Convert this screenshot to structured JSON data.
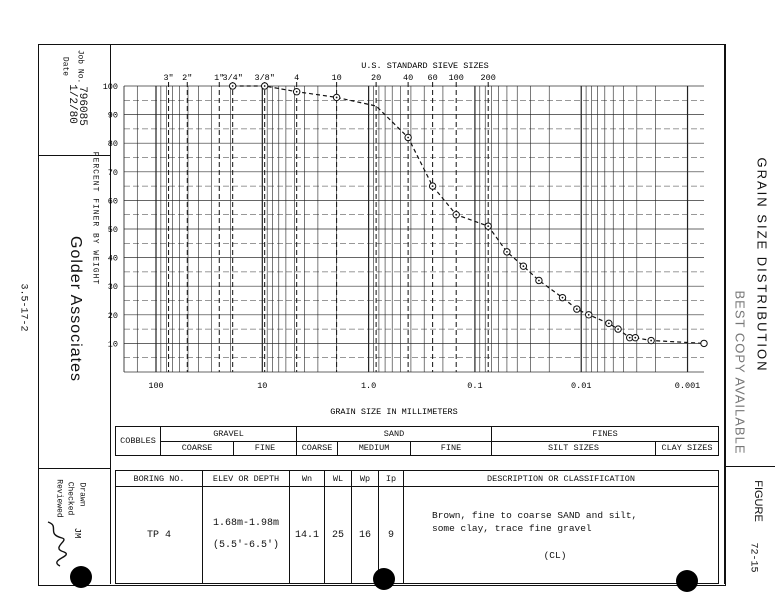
{
  "header": {
    "date_label": "Date",
    "date_value": "1/2/80",
    "job_label": "Job No.",
    "job_value": "796085",
    "company": "Golder Associates",
    "doc_id": "3.5-17-2",
    "drawn_label": "Drawn",
    "drawn_value": "JM",
    "checked_label": "Checked",
    "reviewed_label": "Reviewed",
    "sheet_title": "GRAIN SIZE DISTRIBUTION",
    "stamp": "BEST COPY AVAILABLE",
    "figure_label": "FIGURE",
    "figure_value": "72-15"
  },
  "chart_data": {
    "type": "line",
    "title": "U.S. STANDARD SIEVE SIZES",
    "xlabel": "GRAIN SIZE IN MILLIMETERS",
    "ylabel": "PERCENT FINER BY WEIGHT",
    "x_scale": "log",
    "x_reversed": true,
    "xlim": [
      200,
      0.0007
    ],
    "ylim": [
      0,
      100
    ],
    "x_ticks": [
      100,
      10,
      1.0,
      0.1,
      0.01,
      0.001
    ],
    "x_tick_labels": [
      "100",
      "10",
      "1.0",
      "0.1",
      "0.01",
      "0.001"
    ],
    "y_ticks": [
      10,
      20,
      30,
      40,
      50,
      60,
      70,
      80,
      90,
      100
    ],
    "sieve_labels": [
      {
        "label": "3\"",
        "size": 76.2
      },
      {
        "label": "2\"",
        "size": 50.8
      },
      {
        "label": "1\"",
        "size": 25.4
      },
      {
        "label": "3/4\"",
        "size": 19.0
      },
      {
        "label": "3/8\"",
        "size": 9.5
      },
      {
        "label": "4",
        "size": 4.75
      },
      {
        "label": "10",
        "size": 2.0
      },
      {
        "label": "20",
        "size": 0.85
      },
      {
        "label": "40",
        "size": 0.425
      },
      {
        "label": "60",
        "size": 0.25
      },
      {
        "label": "100",
        "size": 0.15
      },
      {
        "label": "200",
        "size": 0.075
      }
    ],
    "series": [
      {
        "x": [
          19.0,
          9.5,
          4.75,
          2.0,
          0.85,
          0.425,
          0.25,
          0.15,
          0.075,
          0.05,
          0.035,
          0.025,
          0.015,
          0.011,
          0.0085,
          0.0055,
          0.0045,
          0.0035,
          0.0031,
          0.0022,
          0.0007
        ],
        "y": [
          100,
          100,
          98,
          96,
          93,
          82,
          65,
          55,
          51,
          42,
          37,
          32,
          26,
          22,
          20,
          17,
          15,
          12,
          12,
          11,
          10
        ]
      }
    ],
    "grid": true
  },
  "classification": {
    "cobbles": "COBBLES",
    "gravel": "GRAVEL",
    "gravel_coarse": "COARSE",
    "gravel_fine": "FINE",
    "sand": "SAND",
    "sand_coarse": "COARSE",
    "sand_medium": "MEDIUM",
    "sand_fine": "FINE",
    "fines": "FINES",
    "silt": "SILT SIZES",
    "clay": "CLAY SIZES"
  },
  "boring": {
    "headers": {
      "boring_no": "BORING NO.",
      "elev": "ELEV OR DEPTH",
      "wn": "Wn",
      "wl": "WL",
      "wp": "Wp",
      "ip": "Ip",
      "desc": "DESCRIPTION OR CLASSIFICATION"
    },
    "row": {
      "boring_no": "TP 4",
      "elev_1": "1.68m-1.98m",
      "elev_2": "(5.5'-6.5')",
      "wn": "14.1",
      "wl": "25",
      "wp": "16",
      "ip": "9",
      "desc_1": "Brown, fine to coarse SAND and silt,",
      "desc_2": "some clay, trace fine gravel",
      "desc_3": "(CL)"
    }
  }
}
